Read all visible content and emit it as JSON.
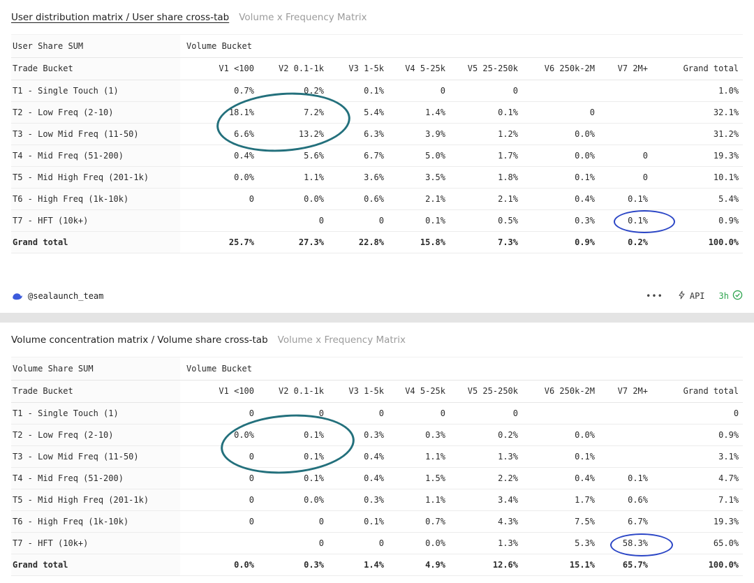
{
  "page": {
    "background": "#e4e4e4"
  },
  "annotations": {
    "teal": "#23707c",
    "blue": "#2b46c6"
  },
  "status_color": "#2da44e",
  "tables": [
    {
      "title": "User distribution matrix / User share cross-tab",
      "subtitle": "Volume x Frequency Matrix",
      "corner_label": "User Share SUM",
      "column_group_label": "Volume Bucket",
      "row_header": "Trade Bucket",
      "columns": [
        "V1 <100",
        "V2 0.1-1k",
        "V3 1-5k",
        "V4 5-25k",
        "V5 25-250k",
        "V6 250k-2M",
        "V7 2M+",
        "Grand total"
      ],
      "rows": [
        {
          "label": "T1 - Single Touch (1)",
          "values": [
            "0.7%",
            "0.2%",
            "0.1%",
            "0",
            "0",
            "",
            "",
            "1.0%"
          ]
        },
        {
          "label": "T2 - Low Freq (2-10)",
          "values": [
            "18.1%",
            "7.2%",
            "5.4%",
            "1.4%",
            "0.1%",
            "0",
            "",
            "32.1%"
          ]
        },
        {
          "label": "T3 - Low Mid Freq (11-50)",
          "values": [
            "6.6%",
            "13.2%",
            "6.3%",
            "3.9%",
            "1.2%",
            "0.0%",
            "",
            "31.2%"
          ]
        },
        {
          "label": "T4 - Mid Freq (51-200)",
          "values": [
            "0.4%",
            "5.6%",
            "6.7%",
            "5.0%",
            "1.7%",
            "0.0%",
            "0",
            "19.3%"
          ]
        },
        {
          "label": "T5 - Mid High Freq (201-1k)",
          "values": [
            "0.0%",
            "1.1%",
            "3.6%",
            "3.5%",
            "1.8%",
            "0.1%",
            "0",
            "10.1%"
          ]
        },
        {
          "label": "T6 - High Freq (1k-10k)",
          "values": [
            "0",
            "0.0%",
            "0.6%",
            "2.1%",
            "2.1%",
            "0.4%",
            "0.1%",
            "5.4%"
          ]
        },
        {
          "label": "T7 - HFT (10k+)",
          "values": [
            "",
            "0",
            "0",
            "0.1%",
            "0.5%",
            "0.3%",
            "0.1%",
            "0.9%"
          ]
        },
        {
          "label": "Grand total",
          "bold": true,
          "values": [
            "25.7%",
            "27.3%",
            "22.8%",
            "15.8%",
            "7.3%",
            "0.9%",
            "0.2%",
            "100.0%"
          ]
        }
      ],
      "footer": {
        "handle": "@sealaunch_team",
        "more_label": "•••",
        "api_label": "API",
        "refresh_age": "3h"
      }
    },
    {
      "title": "Volume concentration matrix / Volume share cross-tab",
      "subtitle": "Volume x Frequency Matrix",
      "corner_label": "Volume Share SUM",
      "column_group_label": "Volume Bucket",
      "row_header": "Trade Bucket",
      "columns": [
        "V1 <100",
        "V2 0.1-1k",
        "V3 1-5k",
        "V4 5-25k",
        "V5 25-250k",
        "V6 250k-2M",
        "V7 2M+",
        "Grand total"
      ],
      "rows": [
        {
          "label": "T1 - Single Touch (1)",
          "values": [
            "0",
            "0",
            "0",
            "0",
            "0",
            "",
            "",
            "0"
          ]
        },
        {
          "label": "T2 - Low Freq (2-10)",
          "values": [
            "0.0%",
            "0.1%",
            "0.3%",
            "0.3%",
            "0.2%",
            "0.0%",
            "",
            "0.9%"
          ]
        },
        {
          "label": "T3 - Low Mid Freq (11-50)",
          "values": [
            "0",
            "0.1%",
            "0.4%",
            "1.1%",
            "1.3%",
            "0.1%",
            "",
            "3.1%"
          ]
        },
        {
          "label": "T4 - Mid Freq (51-200)",
          "values": [
            "0",
            "0.1%",
            "0.4%",
            "1.5%",
            "2.2%",
            "0.4%",
            "0.1%",
            "4.7%"
          ]
        },
        {
          "label": "T5 - Mid High Freq (201-1k)",
          "values": [
            "0",
            "0.0%",
            "0.3%",
            "1.1%",
            "3.4%",
            "1.7%",
            "0.6%",
            "7.1%"
          ]
        },
        {
          "label": "T6 - High Freq (1k-10k)",
          "values": [
            "0",
            "0",
            "0.1%",
            "0.7%",
            "4.3%",
            "7.5%",
            "6.7%",
            "19.3%"
          ]
        },
        {
          "label": "T7 - HFT (10k+)",
          "values": [
            "",
            "0",
            "0",
            "0.0%",
            "1.3%",
            "5.3%",
            "58.3%",
            "65.0%"
          ]
        },
        {
          "label": "Grand total",
          "bold": true,
          "values": [
            "0.0%",
            "0.3%",
            "1.4%",
            "4.9%",
            "12.6%",
            "15.1%",
            "65.7%",
            "100.0%"
          ]
        }
      ]
    }
  ]
}
